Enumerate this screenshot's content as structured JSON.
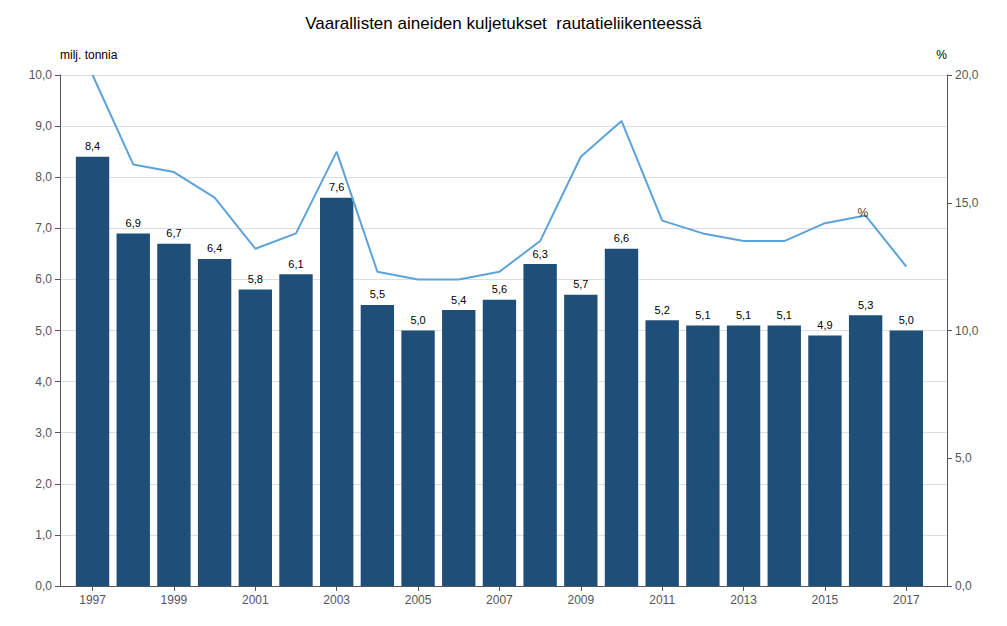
{
  "chart_data": {
    "type": "bar",
    "title": "Vaarallisten aineiden kuljetukset  rautatieliikenteessä",
    "x": [
      1997,
      1998,
      1999,
      2000,
      2001,
      2002,
      2003,
      2004,
      2005,
      2006,
      2007,
      2008,
      2009,
      2010,
      2011,
      2012,
      2013,
      2014,
      2015,
      2016,
      2017
    ],
    "series": [
      {
        "type": "bar",
        "color": "#1F4E79",
        "data_labels": true,
        "values": [
          8.4,
          6.9,
          6.7,
          6.4,
          5.8,
          6.1,
          7.6,
          5.5,
          5.0,
          5.4,
          5.6,
          6.3,
          5.7,
          6.6,
          5.2,
          5.1,
          5.1,
          5.1,
          4.9,
          5.3,
          5.0
        ],
        "value_labels": [
          "8,4",
          "6,9",
          "6,7",
          "6,4",
          "5,8",
          "6,1",
          "7,6",
          "5,5",
          "5,0",
          "5,4",
          "5,6",
          "6,3",
          "5,7",
          "6,6",
          "5,2",
          "5,1",
          "5,1",
          "5,1",
          "4,9",
          "5,3",
          "5,0"
        ]
      },
      {
        "type": "line",
        "axis": "y2",
        "color": "#5BA3D9",
        "values": [
          20.0,
          16.5,
          16.2,
          15.2,
          13.2,
          13.8,
          17.0,
          12.3,
          12.0,
          12.0,
          12.3,
          13.5,
          16.8,
          18.2,
          14.3,
          13.8,
          13.5,
          13.5,
          14.2,
          14.5,
          12.5
        ]
      }
    ],
    "ylabel": "milj. tonnia",
    "y2label": "%",
    "xlim": [
      1996.2,
      2018.0
    ],
    "xticks": [
      1997,
      1999,
      2001,
      2003,
      2005,
      2007,
      2009,
      2011,
      2013,
      2015,
      2017
    ],
    "ylim": [
      0,
      10
    ],
    "yticks": [
      {
        "value": 0,
        "label": "0,0"
      },
      {
        "value": 1,
        "label": "1,0"
      },
      {
        "value": 2,
        "label": "2,0"
      },
      {
        "value": 3,
        "label": "3,0"
      },
      {
        "value": 4,
        "label": "4,0"
      },
      {
        "value": 5,
        "label": "5,0"
      },
      {
        "value": 6,
        "label": "6,0"
      },
      {
        "value": 7,
        "label": "7,0"
      },
      {
        "value": 8,
        "label": "8,0"
      },
      {
        "value": 9,
        "label": "9,0"
      },
      {
        "value": 10,
        "label": "10,0"
      }
    ],
    "y2lim": [
      0,
      20
    ],
    "y2ticks": [
      {
        "value": 0,
        "label": "0,0"
      },
      {
        "value": 5,
        "label": "5,0"
      },
      {
        "value": 10,
        "label": "10,0"
      },
      {
        "value": 15,
        "label": "15,0"
      },
      {
        "value": 20,
        "label": "20,0"
      }
    ],
    "annotations": [
      {
        "text": "%",
        "x": 2015.8,
        "y": 14.6,
        "axis": "y2"
      }
    ],
    "grid": true
  }
}
